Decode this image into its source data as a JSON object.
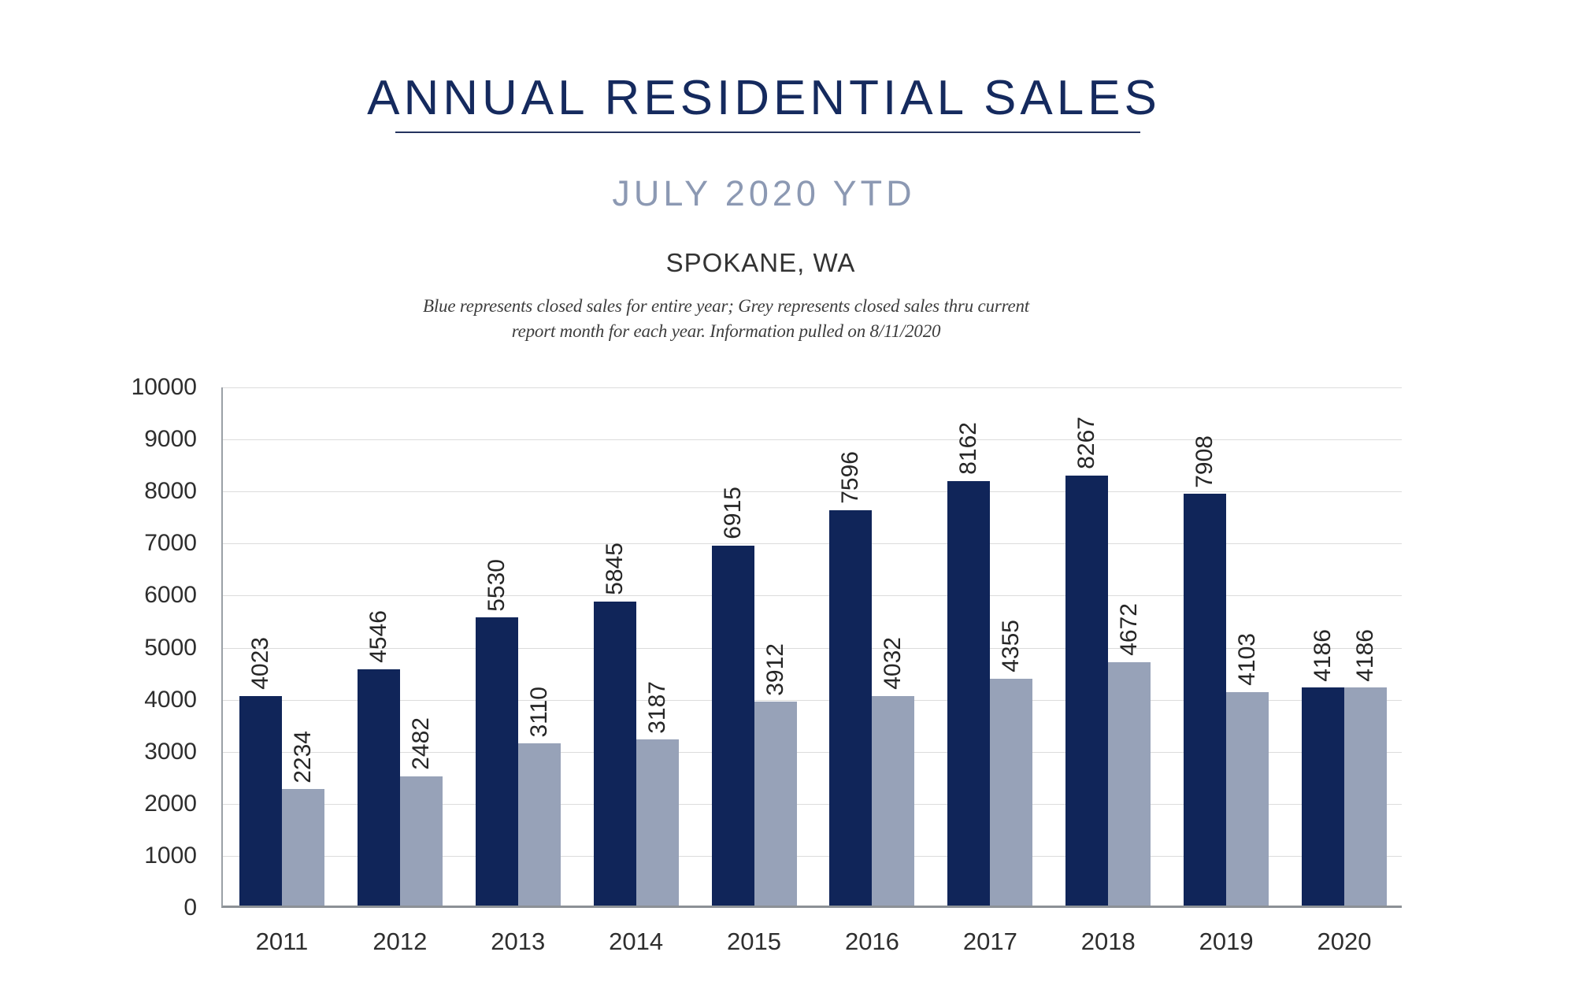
{
  "header": {
    "title": "ANNUAL RESIDENTIAL SALES",
    "subtitle": "JULY 2020 YTD",
    "location": "SPOKANE, WA",
    "note_line1": "Blue represents closed sales for entire year; Grey represents closed sales thru current",
    "note_line2": "report month for each year.  Information pulled on 8/11/2020"
  },
  "colors": {
    "title_navy": "#152a5e",
    "subtitle_grey_blue": "#8c99b3",
    "bar_blue": "#102559",
    "bar_grey": "#97a2b8",
    "gridline": "#dcdcdc",
    "axis_grey": "#9aa0a6",
    "label_dark": "#262626"
  },
  "chart_data": {
    "type": "bar",
    "title": "ANNUAL RESIDENTIAL SALES — JULY 2020 YTD — SPOKANE, WA",
    "categories": [
      "2011",
      "2012",
      "2013",
      "2014",
      "2015",
      "2016",
      "2017",
      "2018",
      "2019",
      "2020"
    ],
    "series": [
      {
        "name": "Blue — closed sales for entire year",
        "color": "#102559",
        "values": [
          4023,
          4546,
          5530,
          5845,
          6915,
          7596,
          8162,
          8267,
          7908,
          4186
        ]
      },
      {
        "name": "Grey — closed sales thru current report month",
        "color": "#97a2b8",
        "values": [
          2234,
          2482,
          3110,
          3187,
          3912,
          4032,
          4355,
          4672,
          4103,
          4186
        ]
      }
    ],
    "xlabel": "",
    "ylabel": "",
    "ylim": [
      0,
      10000
    ],
    "yticks": [
      0,
      1000,
      2000,
      3000,
      4000,
      5000,
      6000,
      7000,
      8000,
      9000,
      10000
    ],
    "grid": true,
    "legend_position": "none",
    "bar_value_labels": "rotated-90-above-bars"
  }
}
